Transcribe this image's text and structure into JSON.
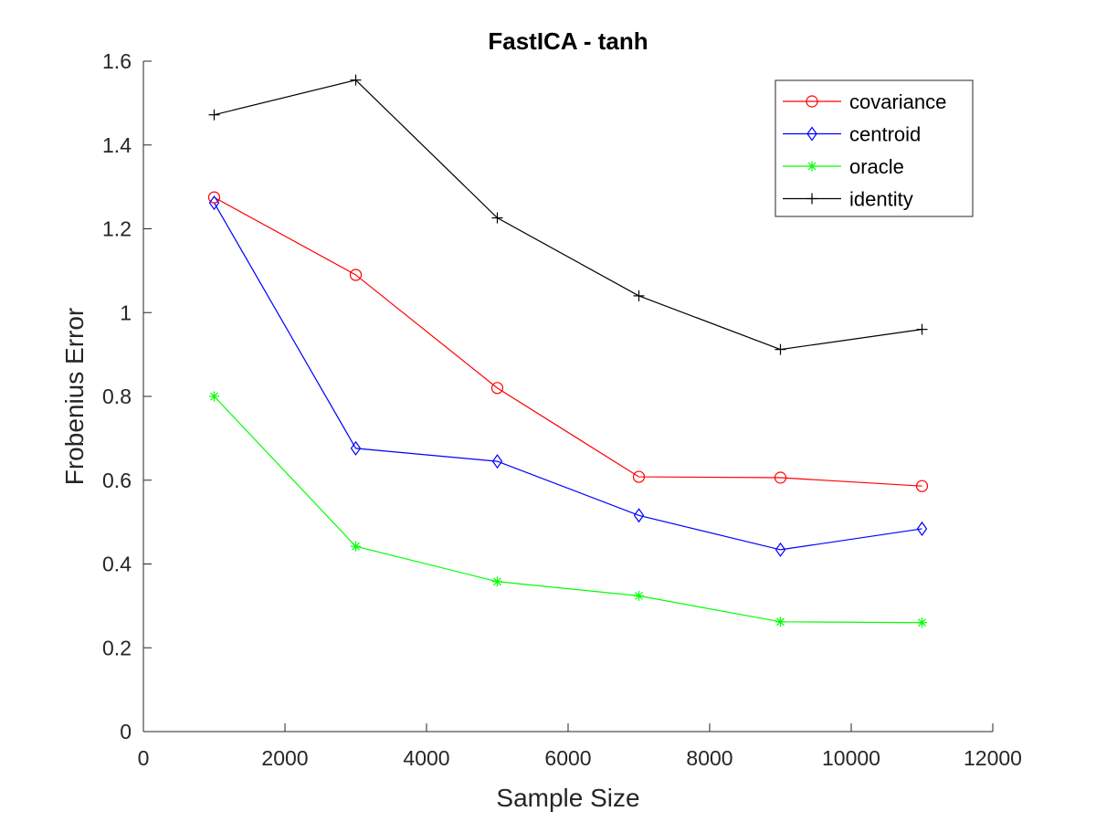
{
  "chart_data": {
    "type": "line",
    "title": "FastICA - tanh",
    "xlabel": "Sample Size",
    "ylabel": "Frobenius Error",
    "xlim": [
      0,
      12000
    ],
    "ylim": [
      0,
      1.6
    ],
    "xticks": [
      0,
      2000,
      4000,
      6000,
      8000,
      10000,
      12000
    ],
    "yticks": [
      0,
      0.2,
      0.4,
      0.6,
      0.8,
      1,
      1.2,
      1.4,
      1.6
    ],
    "xtick_labels": [
      "0",
      "2000",
      "4000",
      "6000",
      "8000",
      "10000",
      "12000"
    ],
    "ytick_labels": [
      "0",
      "0.2",
      "0.4",
      "0.6",
      "0.8",
      "1",
      "1.2",
      "1.4",
      "1.6"
    ],
    "grid": false,
    "legend_position": "top-right",
    "x": [
      1000,
      3000,
      5000,
      7000,
      9000,
      11000
    ],
    "series": [
      {
        "name": "covariance",
        "color": "#ff0000",
        "marker": "circle",
        "values": [
          1.275,
          1.09,
          0.82,
          0.608,
          0.606,
          0.586
        ]
      },
      {
        "name": "centroid",
        "color": "#0000ff",
        "marker": "diamond",
        "values": [
          1.262,
          0.676,
          0.645,
          0.516,
          0.434,
          0.484
        ]
      },
      {
        "name": "oracle",
        "color": "#00ff00",
        "marker": "asterisk",
        "values": [
          0.8,
          0.442,
          0.358,
          0.324,
          0.262,
          0.26
        ]
      },
      {
        "name": "identity",
        "color": "#000000",
        "marker": "plus",
        "values": [
          1.472,
          1.555,
          1.226,
          1.04,
          0.912,
          0.96
        ]
      }
    ]
  }
}
